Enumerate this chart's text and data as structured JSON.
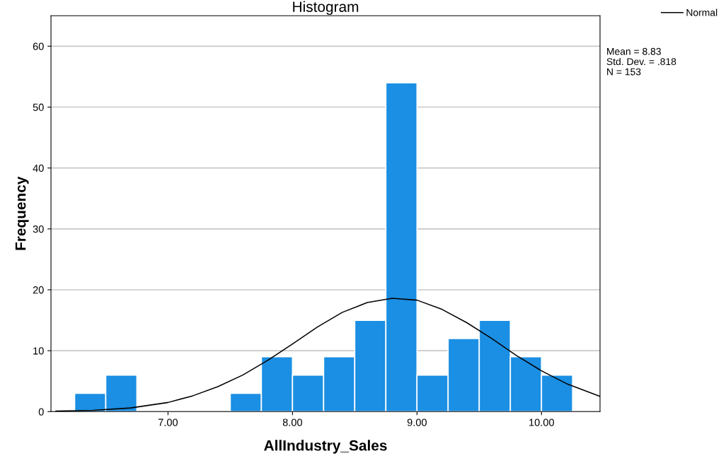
{
  "chart_data": {
    "type": "histogram",
    "title": "Histogram",
    "xlabel": "AllIndustry_Sales",
    "ylabel": "Frequency",
    "bins": [
      6.25,
      6.5,
      6.75,
      7.0,
      7.25,
      7.5,
      7.75,
      8.0,
      8.25,
      8.5,
      8.75,
      9.0,
      9.25,
      9.5,
      9.75,
      10.0,
      10.25
    ],
    "values": [
      3,
      6,
      0,
      0,
      0,
      3,
      9,
      6,
      9,
      15,
      54,
      6,
      12,
      15,
      9,
      6
    ],
    "color": "#1a8fe3",
    "series": [
      {
        "name": "Normal",
        "type": "line",
        "color": "#000000",
        "x": [
          6.1,
          6.4,
          6.7,
          7.0,
          7.2,
          7.4,
          7.6,
          7.8,
          8.0,
          8.2,
          8.4,
          8.6,
          8.8,
          9.0,
          9.2,
          9.4,
          9.6,
          9.8,
          10.0,
          10.2,
          10.47
        ],
        "values": [
          0.1,
          0.2,
          0.6,
          1.5,
          2.6,
          4.1,
          6.0,
          8.4,
          11.1,
          13.9,
          16.3,
          17.9,
          18.6,
          18.3,
          16.8,
          14.6,
          12.0,
          9.2,
          6.7,
          4.6,
          2.5
        ]
      }
    ],
    "xlim": [
      6.06,
      10.47
    ],
    "xticks": [
      {
        "value": 7,
        "label": "7.00"
      },
      {
        "value": 8,
        "label": "8.00"
      },
      {
        "value": 9,
        "label": "9.00"
      },
      {
        "value": 10,
        "label": "10.00"
      }
    ],
    "ylim": [
      0,
      65
    ],
    "yticks": [
      0,
      10,
      20,
      30,
      40,
      50,
      60
    ],
    "grid": "y",
    "legend": "top right",
    "annotations": [
      "Mean = 8.83",
      "Std. Dev. = .818",
      "N = 153"
    ]
  }
}
